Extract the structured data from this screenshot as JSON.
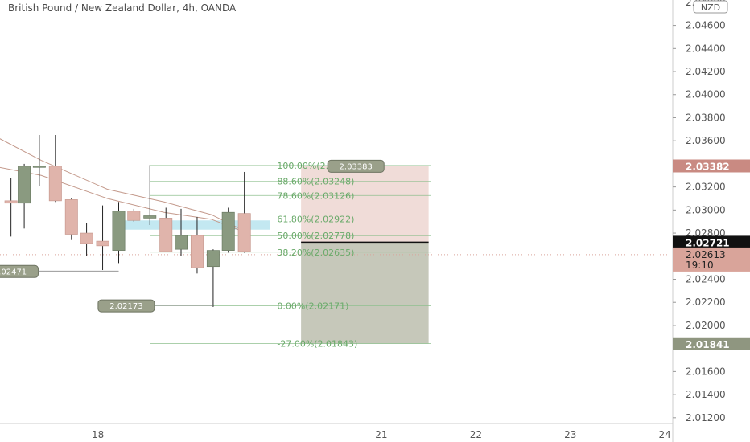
{
  "header": {
    "title": "British Pound / New Zealand Dollar, 4h, OANDA"
  },
  "currency_badge": "NZD",
  "colors": {
    "bull": "#8a9a80",
    "bear": "#e0b4ab",
    "zone": "#b8e4ee",
    "stop_zone": "#f0dcd8",
    "target_zone": "#c6c8ba",
    "fib_line": "#8fc08f",
    "fib_text": "#6aaa6a",
    "ma": "#c49a8c",
    "axis_text": "#555555"
  },
  "chart_data": {
    "type": "candlestick",
    "y_ticks": [
      "2.04600",
      "2.04400",
      "2.04200",
      "2.04000",
      "2.03800",
      "2.03600",
      "2.03200",
      "2.03000",
      "2.02800",
      "2.02400",
      "2.02200",
      "2.02000",
      "2.01600",
      "2.01400",
      "2.01200"
    ],
    "y_top_partial": "2.04800",
    "x_ticks": [
      {
        "label": "18",
        "x": 18
      },
      {
        "label": "21",
        "x": 21
      },
      {
        "label": "22",
        "x": 22
      },
      {
        "label": "23",
        "x": 23
      },
      {
        "label": "24",
        "x": 24
      }
    ],
    "ylim": [
      2.0115,
      2.0482
    ],
    "xlim": [
      17.1,
      24.22
    ],
    "candles": [
      {
        "x": 17.08,
        "o": 2.0308,
        "h": 2.0328,
        "l": 2.0277,
        "c": 2.0306
      },
      {
        "x": 17.22,
        "o": 2.0306,
        "h": 2.034,
        "l": 2.0284,
        "c": 2.0338
      },
      {
        "x": 17.38,
        "o": 2.0337,
        "h": 2.0365,
        "l": 2.0321,
        "c": 2.0338
      },
      {
        "x": 17.55,
        "o": 2.0338,
        "h": 2.0365,
        "l": 2.0307,
        "c": 2.0308
      },
      {
        "x": 17.72,
        "o": 2.0309,
        "h": 2.031,
        "l": 2.0274,
        "c": 2.0279
      },
      {
        "x": 17.88,
        "o": 2.028,
        "h": 2.0289,
        "l": 2.026,
        "c": 2.0271
      },
      {
        "x": 18.05,
        "o": 2.0273,
        "h": 2.0304,
        "l": 2.0248,
        "c": 2.0269
      },
      {
        "x": 18.22,
        "o": 2.0265,
        "h": 2.0307,
        "l": 2.0254,
        "c": 2.0299
      },
      {
        "x": 18.38,
        "o": 2.0299,
        "h": 2.0301,
        "l": 2.029,
        "c": 2.0291
      },
      {
        "x": 18.55,
        "o": 2.0293,
        "h": 2.0339,
        "l": 2.0287,
        "c": 2.0295
      },
      {
        "x": 18.72,
        "o": 2.0293,
        "h": 2.0302,
        "l": 2.0265,
        "c": 2.0264
      },
      {
        "x": 18.88,
        "o": 2.0266,
        "h": 2.0301,
        "l": 2.026,
        "c": 2.0278
      },
      {
        "x": 19.05,
        "o": 2.0278,
        "h": 2.0294,
        "l": 2.0245,
        "c": 2.025
      },
      {
        "x": 19.22,
        "o": 2.0251,
        "h": 2.0266,
        "l": 2.0216,
        "c": 2.0265
      },
      {
        "x": 19.38,
        "o": 2.0265,
        "h": 2.0302,
        "l": 2.0263,
        "c": 2.0298
      },
      {
        "x": 19.55,
        "o": 2.0297,
        "h": 2.0333,
        "l": 2.0263,
        "c": 2.0264
      }
    ],
    "ma_lines": [
      [
        [
          16.0,
          2.0399
        ],
        [
          16.7,
          2.0373
        ],
        [
          17.4,
          2.0343
        ],
        [
          18.1,
          2.0318
        ],
        [
          18.7,
          2.0307
        ],
        [
          19.2,
          2.0296
        ],
        [
          19.55,
          2.0282
        ]
      ],
      [
        [
          16.0,
          2.0352
        ],
        [
          16.7,
          2.0341
        ],
        [
          17.4,
          2.033
        ],
        [
          18.1,
          2.031
        ],
        [
          18.7,
          2.0298
        ],
        [
          19.2,
          2.0292
        ],
        [
          19.55,
          2.0281
        ]
      ]
    ],
    "entry_zone": {
      "x0": 18.22,
      "x1": 19.82,
      "y_top": 2.0291,
      "y_bot": 2.0283
    },
    "fib_levels": [
      {
        "label": "100.00%(2.03386)",
        "value": 2.03386
      },
      {
        "label": "88.60%(2.03248)",
        "value": 2.03248
      },
      {
        "label": "78.60%(2.03126)",
        "value": 2.03126
      },
      {
        "label": "61.80%(2.02922)",
        "value": 2.02922
      },
      {
        "label": "50.00%(2.02778)",
        "value": 2.02778
      },
      {
        "label": "38.20%(2.02635)",
        "value": 2.02635
      },
      {
        "label": "0.00%(2.02171)",
        "value": 2.02171
      },
      {
        "label": "-27.00%(2.01843)",
        "value": 2.01843
      }
    ],
    "fib_x0": 18.55,
    "fib_x1": 19.82,
    "position": {
      "x0": 20.15,
      "x1": 21.5,
      "stop": 2.03386,
      "entry": 2.02721,
      "target": 2.01841
    },
    "callouts": [
      {
        "text": "2.03383",
        "x": 20.73,
        "y": 2.03383
      },
      {
        "text": "2.02471",
        "x": 17.07,
        "y": 2.02471
      },
      {
        "text": "2.02173",
        "x": 18.3,
        "y": 2.02173
      }
    ],
    "price_labels": [
      {
        "text": "2.03382",
        "value": 2.03382,
        "bg": "#c98a82",
        "fg": "#ffffff"
      },
      {
        "text": "2.02721",
        "value": 2.02721,
        "bg": "#111111",
        "fg": "#ffffff"
      },
      {
        "text": "2.01841",
        "value": 2.01841,
        "bg": "#8f9680",
        "fg": "#ffffff"
      }
    ],
    "current": {
      "price": "2.02613",
      "countdown": "19:10",
      "value": 2.02613
    }
  }
}
